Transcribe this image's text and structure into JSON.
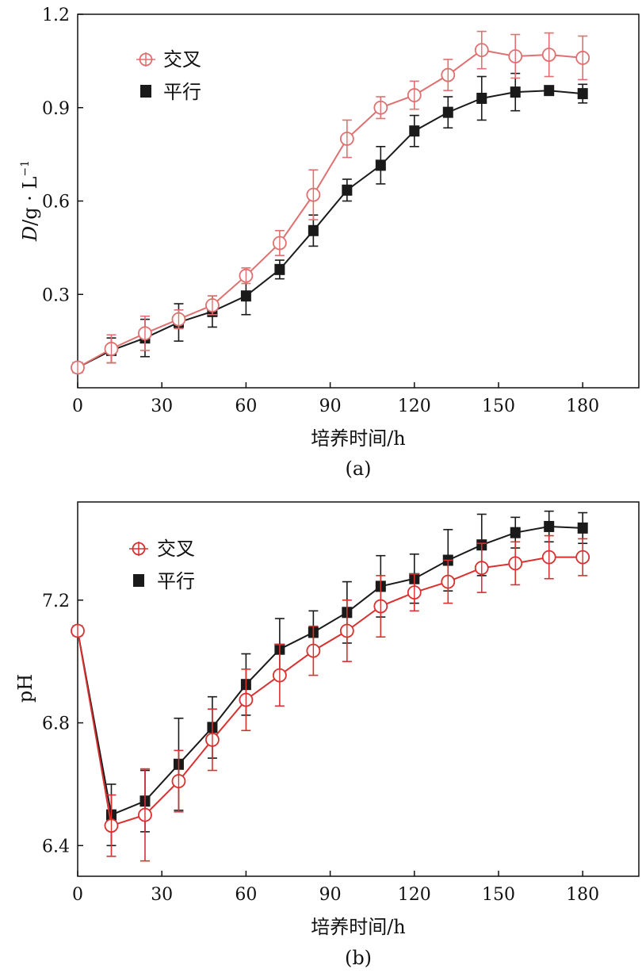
{
  "chart_data": [
    {
      "type": "line",
      "panel_label": "(a)",
      "xlabel": "培养时间/h",
      "ylabel_prefix": "D",
      "ylabel_unit": "/g · L",
      "ylabel_exp": "−1",
      "xlim": [
        0,
        200
      ],
      "ylim": [
        0.0,
        1.2
      ],
      "xticks": [
        0,
        30,
        60,
        90,
        120,
        150,
        180
      ],
      "yticks": [
        0.3,
        0.6,
        0.9,
        1.2
      ],
      "xtick_labels": [
        "0",
        "30",
        "60",
        "90",
        "120",
        "150",
        "180"
      ],
      "ytick_labels": [
        "0.3",
        "0.6",
        "0.9",
        "1.2"
      ],
      "series": [
        {
          "name": "交叉",
          "marker": "circle-plus",
          "color": "#e07070",
          "x": [
            0,
            12,
            24,
            36,
            48,
            60,
            72,
            84,
            96,
            108,
            120,
            132,
            144,
            156,
            168,
            180
          ],
          "y": [
            0.065,
            0.125,
            0.175,
            0.22,
            0.265,
            0.36,
            0.465,
            0.62,
            0.8,
            0.9,
            0.94,
            1.005,
            1.085,
            1.065,
            1.07,
            1.06
          ],
          "err": [
            0.01,
            0.045,
            0.055,
            0.03,
            0.03,
            0.025,
            0.04,
            0.08,
            0.06,
            0.035,
            0.045,
            0.05,
            0.06,
            0.07,
            0.07,
            0.07
          ]
        },
        {
          "name": "平行",
          "marker": "square",
          "color": "#1a1a1a",
          "x": [
            0,
            12,
            24,
            36,
            48,
            60,
            72,
            84,
            96,
            108,
            120,
            132,
            144,
            156,
            168,
            180
          ],
          "y": [
            0.065,
            0.12,
            0.16,
            0.21,
            0.245,
            0.295,
            0.38,
            0.505,
            0.635,
            0.715,
            0.825,
            0.885,
            0.93,
            0.95,
            0.955,
            0.945
          ],
          "err": [
            0.01,
            0.04,
            0.06,
            0.06,
            0.05,
            0.06,
            0.03,
            0.05,
            0.035,
            0.06,
            0.05,
            0.05,
            0.07,
            0.06,
            0.01,
            0.03
          ]
        }
      ]
    },
    {
      "type": "line",
      "panel_label": "(b)",
      "xlabel": "培养时间/h",
      "ylabel": "pH",
      "xlim": [
        0,
        200
      ],
      "ylim": [
        6.3,
        7.52
      ],
      "xticks": [
        0,
        30,
        60,
        90,
        120,
        150,
        180
      ],
      "yticks": [
        6.4,
        6.8,
        7.2
      ],
      "xtick_labels": [
        "0",
        "30",
        "60",
        "90",
        "120",
        "150",
        "180"
      ],
      "ytick_labels": [
        "6.4",
        "6.8",
        "7.2"
      ],
      "series": [
        {
          "name": "交叉",
          "marker": "circle-plus",
          "color": "#d93030",
          "x": [
            0,
            12,
            24,
            36,
            48,
            60,
            72,
            84,
            96,
            108,
            120,
            132,
            144,
            156,
            168,
            180
          ],
          "y": [
            7.1,
            6.465,
            6.5,
            6.61,
            6.745,
            6.875,
            6.955,
            7.035,
            7.1,
            7.18,
            7.225,
            7.26,
            7.305,
            7.32,
            7.34,
            7.34
          ],
          "err": [
            0.01,
            0.1,
            0.15,
            0.1,
            0.1,
            0.1,
            0.1,
            0.08,
            0.1,
            0.1,
            0.06,
            0.07,
            0.08,
            0.07,
            0.07,
            0.06
          ]
        },
        {
          "name": "平行",
          "marker": "square",
          "color": "#1a1a1a",
          "x": [
            0,
            12,
            24,
            36,
            48,
            60,
            72,
            84,
            96,
            108,
            120,
            132,
            144,
            156,
            168,
            180
          ],
          "y": [
            7.1,
            6.5,
            6.545,
            6.665,
            6.785,
            6.925,
            7.04,
            7.095,
            7.16,
            7.245,
            7.27,
            7.33,
            7.38,
            7.42,
            7.44,
            7.435
          ],
          "err": [
            0.01,
            0.1,
            0.1,
            0.15,
            0.1,
            0.1,
            0.1,
            0.07,
            0.1,
            0.1,
            0.08,
            0.1,
            0.1,
            0.05,
            0.05,
            0.05
          ]
        }
      ]
    }
  ]
}
